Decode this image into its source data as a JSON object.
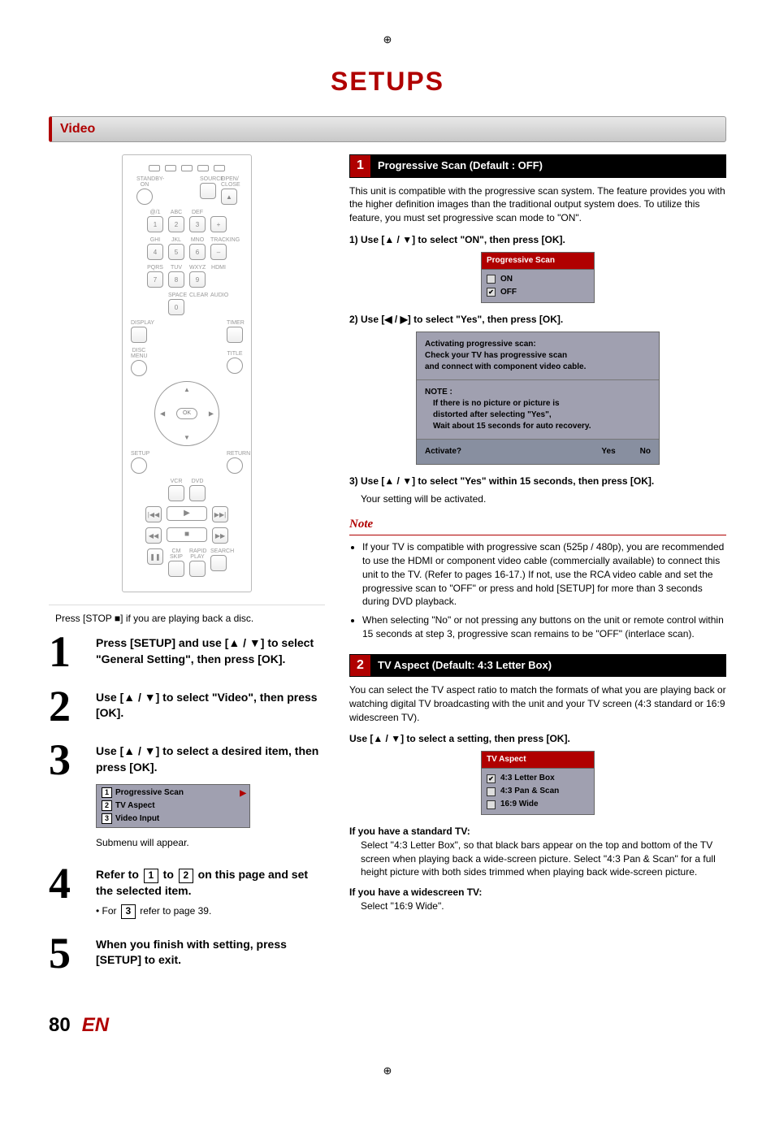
{
  "registration_mark": "⊕",
  "title": "SETUPS",
  "section": "Video",
  "remote": {
    "keys_top_labels": [
      "STANDBY-ON",
      "",
      "",
      "SOURCE",
      "OPEN/\nCLOSE"
    ],
    "num_labels": [
      [
        "@/1",
        "ABC",
        "DEF",
        ""
      ],
      [
        "GHI",
        "JKL",
        "MNO",
        "TRACKING"
      ],
      [
        "PQRS",
        "TUV",
        "WXYZ",
        "HDMI"
      ],
      [
        "",
        "SPACE",
        "CLEAR",
        "AUDIO"
      ]
    ],
    "nums": [
      [
        "1",
        "2",
        "3",
        "+"
      ],
      [
        "4",
        "5",
        "6",
        "–"
      ],
      [
        "7",
        "8",
        "9",
        ""
      ],
      [
        "",
        "0",
        "",
        ""
      ]
    ],
    "display": "DISPLAY",
    "timer": "TIMER",
    "discmenu": "DISC MENU",
    "title_label": "TITLE",
    "ok": "OK",
    "setup": "SETUP",
    "return": "RETURN",
    "vcr": "VCR",
    "dvd": "DVD",
    "bottom_labels": [
      "CM SKIP",
      "RAPID PLAY",
      "SEARCH"
    ],
    "play": "▶",
    "stop": "■",
    "pause": "❚❚",
    "prev": "|◀◀",
    "next": "▶▶|",
    "rew": "◀◀",
    "ff": "▶▶"
  },
  "caption": "Press [STOP ■] if you are playing back a disc.",
  "steps": [
    {
      "n": "1",
      "text": "Press [SETUP] and use [▲ / ▼] to select \"General Setting\", then press [OK]."
    },
    {
      "n": "2",
      "text": "Use [▲ / ▼] to select \"Video\", then press [OK]."
    },
    {
      "n": "3",
      "text": "Use [▲ / ▼] to select a desired item, then press [OK].",
      "sub": "Submenu will appear."
    },
    {
      "n": "4",
      "text": "Refer to {1} to {2} on this page and set the selected item.",
      "bullet": "For {3} refer to page 39."
    },
    {
      "n": "5",
      "text": "When you finish with setting, press [SETUP] to exit."
    }
  ],
  "submenu": {
    "items": [
      "Progressive Scan",
      "TV Aspect",
      "Video Input"
    ],
    "arrow": "▶"
  },
  "right": {
    "h1": {
      "num": "1",
      "title": "Progressive Scan (Default : OFF)"
    },
    "p1": "This unit is compatible with the progressive scan system. The feature provides you with the higher definition images than the traditional output system does. To utilize this feature, you must set progressive scan mode to \"ON\".",
    "i1": "1) Use [▲ / ▼] to select \"ON\", then press [OK].",
    "osd1": {
      "hdr": "Progressive Scan",
      "rows": [
        {
          "chk": false,
          "label": "ON"
        },
        {
          "chk": true,
          "label": "OFF"
        }
      ]
    },
    "i2": "2) Use [◀ / ▶] to select \"Yes\", then press [OK].",
    "dialog": {
      "sec1": "Activating progressive scan:\nCheck your TV has progressive scan\nand connect with component video cable.",
      "sec2_label": "NOTE :",
      "sec2_body": "If there is no picture or picture is\ndistorted after selecting     \"Yes\",\nWait about 15 seconds for auto recovery.",
      "q": "Activate?",
      "yes": "Yes",
      "no": "No"
    },
    "i3": "3) Use [▲ / ▼] to select \"Yes\" within 15 seconds, then press [OK].",
    "i3_sub": "Your setting will be activated.",
    "note_hdr": "Note",
    "notes": [
      "If your TV is compatible with progressive scan (525p / 480p), you are recommended to use the HDMI or component video cable (commercially available) to connect this unit to the TV. (Refer to pages 16-17.) If not, use the RCA video cable and set the progressive scan to \"OFF\" or press and hold [SETUP] for more than 3 seconds during DVD playback.",
      "When selecting \"No\" or not pressing any buttons on the unit or remote control within 15 seconds at step 3, progressive scan remains to be \"OFF\" (interlace scan)."
    ],
    "h2": {
      "num": "2",
      "title": "TV Aspect (Default: 4:3 Letter Box)"
    },
    "p2": "You can select the TV aspect ratio to match the formats of what you are playing back or watching digital TV broadcasting with the unit and your TV screen (4:3 standard or 16:9 widescreen TV).",
    "i4": "Use [▲ / ▼] to select a setting, then press [OK].",
    "osd2": {
      "hdr": "TV Aspect",
      "rows": [
        {
          "chk": true,
          "label": "4:3 Letter Box"
        },
        {
          "chk": false,
          "label": "4:3 Pan & Scan"
        },
        {
          "chk": false,
          "label": "16:9 Wide"
        }
      ]
    },
    "std_hdr": "If you have a standard TV:",
    "std_body": "Select \"4:3 Letter Box\", so that black bars appear on the top and bottom of the TV screen when playing back a wide-screen picture. Select \"4:3 Pan & Scan\" for a full height picture with both sides trimmed when playing back wide-screen picture.",
    "wide_hdr": "If you have a widescreen TV:",
    "wide_body": "Select \"16:9 Wide\"."
  },
  "footer": {
    "page": "80",
    "lang": "EN"
  }
}
